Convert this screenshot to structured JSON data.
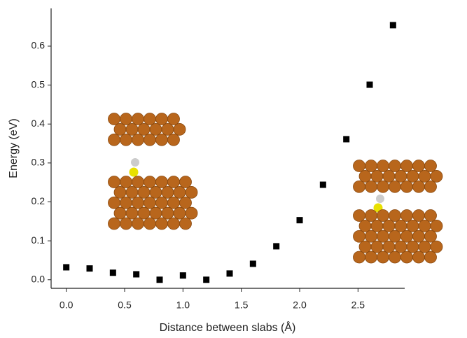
{
  "chart_data": {
    "type": "scatter",
    "x_label": "Distance between slabs (Å)",
    "y_label": "Energy (eV)",
    "x": [
      0,
      0.2,
      0.4,
      0.6,
      0.8,
      1.0,
      1.2,
      1.4,
      1.6,
      1.8,
      2.0,
      2.2,
      2.4,
      2.6,
      2.8
    ],
    "values": [
      0.032,
      0.029,
      0.018,
      0.014,
      0.0,
      0.011,
      0.0,
      0.016,
      0.041,
      0.086,
      0.153,
      0.244,
      0.361,
      0.501,
      0.654
    ],
    "color": "#000000",
    "xlim": [
      -0.13,
      2.9
    ],
    "ylim": [
      -0.022,
      0.697
    ],
    "xticks": [
      {
        "value": 0,
        "label": "0.0"
      },
      0.5,
      {
        "value": 1,
        "label": "1.0"
      },
      1.5,
      {
        "value": 2,
        "label": "2.0"
      },
      2.5
    ],
    "yticks": [
      {
        "value": 0,
        "label": "0.0"
      },
      0.1,
      0.2,
      0.3,
      0.4,
      0.5,
      0.6
    ],
    "grid": false
  }
}
